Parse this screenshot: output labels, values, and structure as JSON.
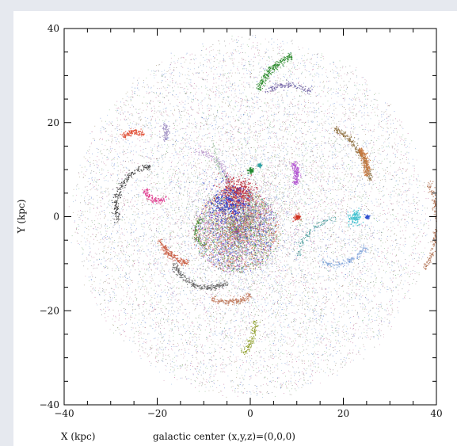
{
  "chart_data": {
    "type": "scatter",
    "title": "",
    "xlabel": "X (kpc)",
    "ylabel": "Y (kpc)",
    "annotation": "galactic center (x,y,z)=(0,0,0)",
    "xlim": [
      -40,
      40
    ],
    "ylim": [
      -40,
      40
    ],
    "xticks": [
      -40,
      -20,
      0,
      20,
      40
    ],
    "yticks": [
      -40,
      -20,
      0,
      20,
      40
    ],
    "xtick_labels": [
      "−40",
      "−20",
      "0",
      "20",
      "40"
    ],
    "ytick_labels": [
      "−40",
      "−20",
      "0",
      "20",
      "40"
    ],
    "grid": false,
    "legend": "none",
    "background_halo": {
      "n_points": 14000,
      "radius_kpc": 38,
      "colors": [
        "#555555",
        "#3a64c8",
        "#5aa05a",
        "#b04080",
        "#8a7a50",
        "#6a9ad0",
        "#c07a9a"
      ]
    },
    "central_core": {
      "center": [
        -3,
        -3
      ],
      "radius_kpc": 9,
      "n_points": 3500,
      "colors": [
        "#d23a2a",
        "#2a4ad2",
        "#3aa03a",
        "#a040c0",
        "#6a6a6a",
        "#c08030"
      ]
    },
    "streams": [
      {
        "name": "",
        "color": "#3aa840",
        "center": [
          19,
          33
        ],
        "radius": 8,
        "angle_start": 70,
        "angle_end": 100,
        "n": 180
      },
      {
        "name": "",
        "color": "#2a8a2a",
        "center": [
          13,
          23
        ],
        "radius": 12,
        "angle_start": 110,
        "angle_end": 160,
        "n": 260
      },
      {
        "name": "",
        "color": "#8a6a3a",
        "center": [
          10,
          5
        ],
        "radius": 16,
        "angle_start": 10,
        "angle_end": 60,
        "n": 260
      },
      {
        "name": "",
        "color": "#c87840",
        "center": [
          18,
          10
        ],
        "radius": 7,
        "angle_start": -10,
        "angle_end": 40,
        "n": 220
      },
      {
        "name": "",
        "color": "#e04a30",
        "center": [
          -25,
          14
        ],
        "radius": 4,
        "angle_start": 60,
        "angle_end": 130,
        "n": 120
      },
      {
        "name": "",
        "color": "#9a8ac0",
        "center": [
          -21,
          18
        ],
        "radius": 3,
        "angle_start": -40,
        "angle_end": 40,
        "n": 80
      },
      {
        "name": "",
        "color": "#e0308a",
        "center": [
          -20,
          6
        ],
        "radius": 2.5,
        "angle_start": 180,
        "angle_end": 320,
        "n": 120
      },
      {
        "name": "",
        "color": "#b050d0",
        "center": [
          6,
          9
        ],
        "radius": 4,
        "angle_start": -30,
        "angle_end": 40,
        "n": 160
      },
      {
        "name": "",
        "color": "#3a3a3a",
        "center": [
          -20,
          2
        ],
        "radius": 9,
        "angle_start": 100,
        "angle_end": 200,
        "n": 220
      },
      {
        "name": "",
        "color": "#c85a40",
        "center": [
          -12,
          -2
        ],
        "radius": 8,
        "angle_start": 200,
        "angle_end": 260,
        "n": 200
      },
      {
        "name": "",
        "color": "#5a5a5a",
        "center": [
          -9,
          -7
        ],
        "radius": 8,
        "angle_start": 200,
        "angle_end": 300,
        "n": 240
      },
      {
        "name": "",
        "color": "#c0785a",
        "center": [
          -5,
          -8
        ],
        "radius": 10,
        "angle_start": 250,
        "angle_end": 300,
        "n": 180
      },
      {
        "name": "",
        "color": "#8a9a20",
        "center": [
          -10,
          -22
        ],
        "radius": 11,
        "angle_start": -40,
        "angle_end": 0,
        "n": 120
      },
      {
        "name": "",
        "color": "#b07050",
        "center": [
          20,
          -1
        ],
        "radius": 20,
        "angle_start": -30,
        "angle_end": 25,
        "n": 200
      },
      {
        "name": "",
        "color": "#6a5aa0",
        "center": [
          8,
          18
        ],
        "radius": 10,
        "angle_start": 60,
        "angle_end": 120,
        "n": 120
      },
      {
        "name": "",
        "color": "#c0a0d0",
        "center": [
          -12,
          7
        ],
        "radius": 7,
        "angle_start": 0,
        "angle_end": 90,
        "n": 140
      },
      {
        "name": "",
        "color": "#7aa0d8",
        "center": [
          18,
          -2
        ],
        "radius": 8,
        "angle_start": 250,
        "angle_end": 330,
        "n": 140
      },
      {
        "name": "",
        "color": "#4a8a3a",
        "center": [
          -9,
          -3
        ],
        "radius": 3,
        "angle_start": 120,
        "angle_end": 260,
        "n": 100
      },
      {
        "name": "",
        "color": "#9ac0a0",
        "center": [
          6,
          16
        ],
        "radius": 14,
        "angle_start": 180,
        "angle_end": 260,
        "n": 120
      },
      {
        "name": "",
        "color": "#50a0a0",
        "center": [
          20,
          -10
        ],
        "radius": 10,
        "angle_start": 100,
        "angle_end": 170,
        "n": 100
      }
    ],
    "blobs": [
      {
        "name": "",
        "color": "#40c0d0",
        "center": [
          22.5,
          0
        ],
        "radius": 1.2,
        "n": 120
      },
      {
        "name": "",
        "color": "#3050d0",
        "center": [
          25,
          0
        ],
        "radius": 0.4,
        "n": 40
      },
      {
        "name": "",
        "color": "#208a30",
        "center": [
          0,
          10
        ],
        "radius": 0.5,
        "n": 50
      },
      {
        "name": "",
        "color": "#30a0a0",
        "center": [
          2,
          11
        ],
        "radius": 0.4,
        "n": 40
      },
      {
        "name": "",
        "color": "#d03020",
        "center": [
          10,
          0
        ],
        "radius": 0.6,
        "n": 60
      },
      {
        "name": "",
        "color": "#c03040",
        "center": [
          -3,
          5
        ],
        "radius": 3,
        "n": 400
      },
      {
        "name": "",
        "color": "#2a3ad0",
        "center": [
          -5,
          3
        ],
        "radius": 3.5,
        "n": 250
      }
    ]
  }
}
